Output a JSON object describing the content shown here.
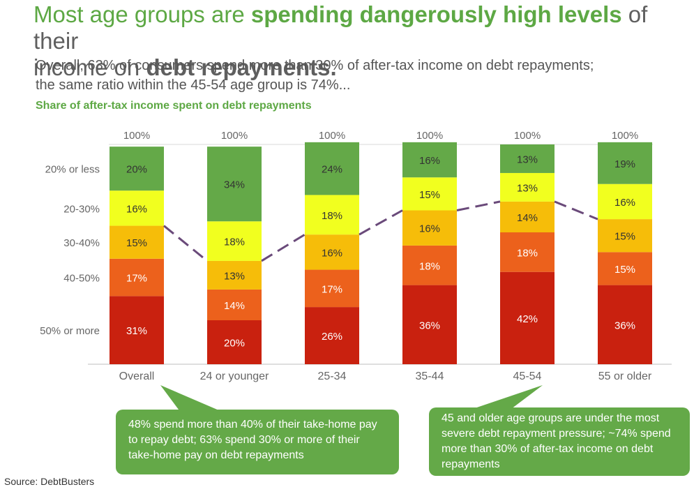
{
  "title": {
    "part1": "Most age groups are ",
    "part2": "spending dangerously high levels",
    "part3": " of their",
    "part4": "income on ",
    "part5": "debt repayments."
  },
  "subtitle": {
    "line1": "Overall, 63% of consumers spend more than 30% of after-tax income on debt repayments;",
    "line2": "the same ratio within the 45-54 age group is 74%..."
  },
  "chart_label": "Share of after-tax income spent on debt repayments",
  "chart_data": {
    "type": "bar",
    "stacked": true,
    "categories": [
      "Overall",
      "24 or younger",
      "25-34",
      "35-44",
      "45-54",
      "55 or older"
    ],
    "totals": [
      "100%",
      "100%",
      "100%",
      "100%",
      "100%",
      "100%"
    ],
    "series": [
      {
        "name": "50% or more",
        "color": "#c9210f",
        "values": [
          31,
          20,
          26,
          36,
          42,
          36
        ]
      },
      {
        "name": "40-50%",
        "color": "#ec611c",
        "values": [
          17,
          14,
          17,
          18,
          18,
          15
        ]
      },
      {
        "name": "30-40%",
        "color": "#f6bd09",
        "values": [
          15,
          13,
          16,
          16,
          14,
          15
        ]
      },
      {
        "name": "20-30%",
        "color": "#f1ff1f",
        "values": [
          16,
          18,
          18,
          15,
          13,
          16
        ]
      },
      {
        "name": "20% or less",
        "color": "#64a948",
        "values": [
          20,
          34,
          24,
          16,
          13,
          19
        ]
      }
    ],
    "ylim": [
      0,
      100
    ],
    "trend_line": {
      "style": "dashed",
      "color": "#6a4a7a",
      "values": [
        63,
        47,
        59,
        70,
        74,
        66
      ]
    }
  },
  "callouts": {
    "left": "48% spend more than 40%  of their take-home pay to repay debt; 63% spend 30% or more of their take-home pay on debt repayments",
    "right": "45 and older age groups are under the most severe debt repayment pressure; ~74% spend more than 30% of after-tax income on debt repayments"
  },
  "source": "Source: DebtBusters"
}
